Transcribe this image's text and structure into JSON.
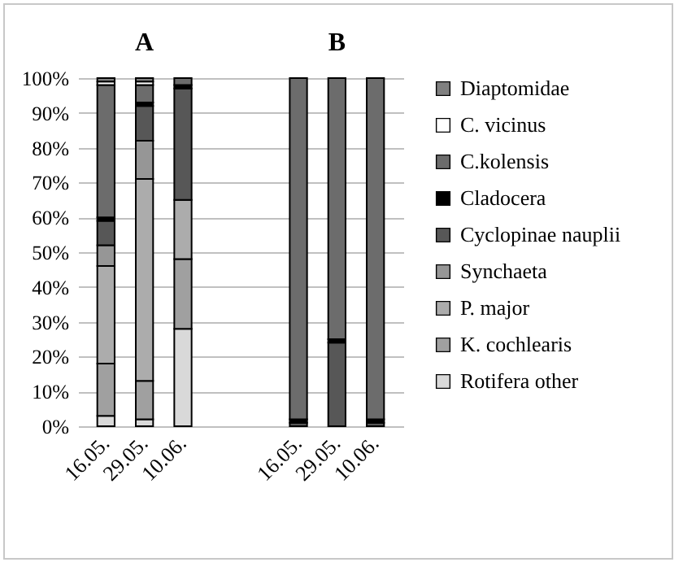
{
  "chart_data": {
    "type": "bar",
    "stacked": true,
    "annotations": [
      "A",
      "B"
    ],
    "categories": [
      "16.05.",
      "29.05.",
      "10.06.",
      null,
      null,
      "16.05.",
      "29.05.",
      "10.06."
    ],
    "series": [
      {
        "name": "Rotifera other",
        "color": "#d9d9d9",
        "values": [
          3,
          2,
          28,
          null,
          null,
          null,
          null,
          null
        ]
      },
      {
        "name": "K. cochlearis",
        "color": "#a0a0a0",
        "values": [
          15,
          11,
          20,
          null,
          null,
          null,
          null,
          null
        ]
      },
      {
        "name": "P. major",
        "color": "#acacac",
        "values": [
          28,
          58,
          17,
          null,
          null,
          null,
          null,
          null
        ]
      },
      {
        "name": "Synchaeta",
        "color": "#969696",
        "values": [
          6,
          11,
          null,
          null,
          null,
          null,
          null,
          null
        ]
      },
      {
        "name": "Cyclopinae nauplii",
        "color": "#575757",
        "values": [
          7,
          10,
          32,
          null,
          null,
          1,
          24,
          1
        ]
      },
      {
        "name": "Cladocera",
        "color": "#000000",
        "values": [
          1,
          1,
          1,
          null,
          null,
          1,
          1,
          1
        ]
      },
      {
        "name": "C.kolensis",
        "color": "#6c6c6c",
        "values": [
          38,
          5,
          2,
          null,
          null,
          98,
          75,
          98
        ]
      },
      {
        "name": "C. vicinus",
        "color": "#ffffff",
        "values": [
          1,
          1,
          null,
          null,
          null,
          null,
          null,
          null
        ]
      },
      {
        "name": "Diaptomidae",
        "color": "#808080",
        "values": [
          1,
          1,
          null,
          null,
          null,
          null,
          null,
          null
        ]
      }
    ],
    "ylim": [
      0,
      100
    ],
    "yticks": [
      {
        "value": 0,
        "label": "0%"
      },
      {
        "value": 10,
        "label": "10%"
      },
      {
        "value": 20,
        "label": "20%"
      },
      {
        "value": 30,
        "label": "30%"
      },
      {
        "value": 40,
        "label": "40%"
      },
      {
        "value": 50,
        "label": "50%"
      },
      {
        "value": 60,
        "label": "60%"
      },
      {
        "value": 70,
        "label": "70%"
      },
      {
        "value": 80,
        "label": "80%"
      },
      {
        "value": 90,
        "label": "90%"
      },
      {
        "value": 100,
        "label": "100%"
      }
    ],
    "grid": "y",
    "legend": "right"
  }
}
